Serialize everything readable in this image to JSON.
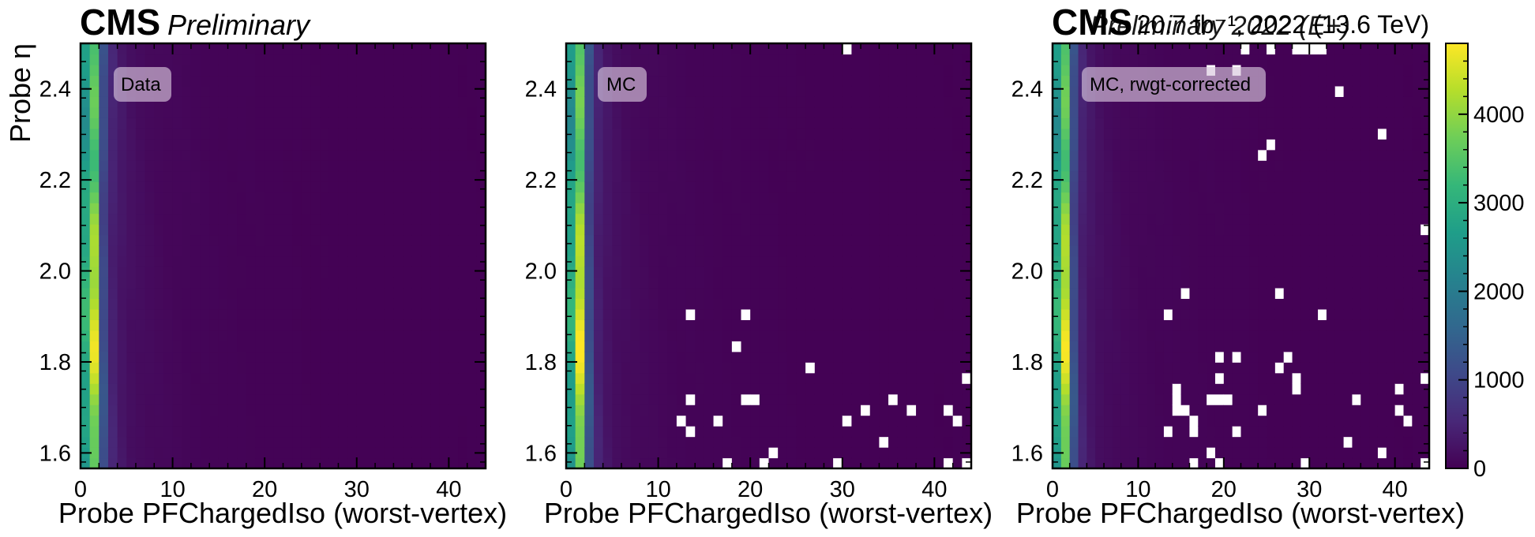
{
  "figure": {
    "experiment_label": "CMS",
    "status_label": "Preliminary",
    "lumi_label": "20.7 fb⁻¹, 2022 (13.6 TeV)",
    "era_label": "Preliminary 2022 (E+)"
  },
  "colormap": {
    "name": "viridis",
    "stops": [
      "#440154",
      "#482878",
      "#3e4989",
      "#31688e",
      "#26828e",
      "#1f9e89",
      "#35b779",
      "#6ece58",
      "#b5de2b",
      "#fde725"
    ],
    "empty_color": "#ffffff"
  },
  "chart_data": [
    {
      "type": "heatmap",
      "panel_label": "Data",
      "xlabel": "Probe PFChargedIso (worst-vertex)",
      "ylabel": "Probe η",
      "xlim": [
        0,
        44
      ],
      "ylim": [
        1.566,
        2.5
      ],
      "x_ticks": [
        0,
        10,
        20,
        30,
        40
      ],
      "x_tick_labels": [
        "0",
        "10",
        "20",
        "30",
        "40"
      ],
      "y_ticks": [
        1.6,
        1.8,
        2.0,
        2.2,
        2.4
      ],
      "y_tick_labels": [
        "1.6",
        "1.8",
        "2.0",
        "2.2",
        "2.4"
      ],
      "x_bins": {
        "start": 0,
        "stop": 44,
        "width": 1
      },
      "y_bins": {
        "start": 1.566,
        "stop": 2.5,
        "count": 40
      },
      "z_profile_by_x_bin": [
        2800,
        3500,
        1100,
        450,
        280,
        190,
        150,
        120,
        100,
        85,
        75,
        65,
        58,
        52,
        47,
        43,
        40,
        37,
        34,
        31,
        29,
        27,
        25,
        23,
        21,
        20,
        19,
        18,
        17,
        16,
        15,
        14,
        13,
        12,
        12,
        11,
        11,
        10,
        10,
        9,
        9,
        8,
        8,
        8
      ],
      "empty_bins_xy": []
    },
    {
      "type": "heatmap",
      "panel_label": "MC",
      "xlabel": "Probe PFChargedIso (worst-vertex)",
      "ylabel": "",
      "xlim": [
        0,
        44
      ],
      "ylim": [
        1.566,
        2.5
      ],
      "x_ticks": [
        0,
        10,
        20,
        30,
        40
      ],
      "x_tick_labels": [
        "0",
        "10",
        "20",
        "30",
        "40"
      ],
      "y_ticks": [
        1.6,
        1.8,
        2.0,
        2.2,
        2.4
      ],
      "y_tick_labels": [
        "1.6",
        "1.8",
        "2.0",
        "2.2",
        "2.4"
      ],
      "x_bins": {
        "start": 0,
        "stop": 44,
        "width": 1
      },
      "y_bins": {
        "start": 1.566,
        "stop": 2.5,
        "count": 40
      },
      "z_profile_by_x_bin": [
        2700,
        3600,
        1150,
        430,
        260,
        180,
        140,
        110,
        95,
        80,
        70,
        62,
        55,
        50,
        45,
        41,
        38,
        35,
        32,
        30,
        28,
        26,
        24,
        22,
        20,
        19,
        18,
        17,
        16,
        15,
        14,
        13,
        12,
        12,
        11,
        11,
        10,
        10,
        9,
        9,
        8,
        8,
        8,
        7
      ],
      "empty_bins_xy": [
        [
          30.5,
          2.485
        ],
        [
          13.5,
          1.905
        ],
        [
          19.5,
          1.905
        ],
        [
          18.5,
          1.835
        ],
        [
          26.5,
          1.788
        ],
        [
          43.5,
          1.765
        ],
        [
          13.5,
          1.718
        ],
        [
          19.5,
          1.718
        ],
        [
          20.5,
          1.718
        ],
        [
          32.5,
          1.695
        ],
        [
          35.5,
          1.718
        ],
        [
          37.5,
          1.695
        ],
        [
          41.5,
          1.695
        ],
        [
          12.5,
          1.672
        ],
        [
          16.5,
          1.672
        ],
        [
          30.5,
          1.672
        ],
        [
          42.5,
          1.672
        ],
        [
          13.5,
          1.648
        ],
        [
          34.5,
          1.625
        ],
        [
          22.5,
          1.602
        ],
        [
          17.5,
          1.578
        ],
        [
          21.5,
          1.578
        ],
        [
          29.5,
          1.578
        ],
        [
          41.5,
          1.578
        ],
        [
          43.5,
          1.578
        ]
      ]
    },
    {
      "type": "heatmap",
      "panel_label": "MC, rwgt-corrected",
      "xlabel": "Probe PFChargedIso (worst-vertex)",
      "ylabel": "",
      "xlim": [
        0,
        44
      ],
      "ylim": [
        1.566,
        2.5
      ],
      "x_ticks": [
        0,
        10,
        20,
        30,
        40
      ],
      "x_tick_labels": [
        "0",
        "10",
        "20",
        "30",
        "40"
      ],
      "y_ticks": [
        1.6,
        1.8,
        2.0,
        2.2,
        2.4
      ],
      "y_tick_labels": [
        "1.6",
        "1.8",
        "2.0",
        "2.2",
        "2.4"
      ],
      "x_bins": {
        "start": 0,
        "stop": 44,
        "width": 1
      },
      "y_bins": {
        "start": 1.566,
        "stop": 2.5,
        "count": 40
      },
      "z_profile_by_x_bin": [
        2750,
        3550,
        1120,
        440,
        270,
        185,
        145,
        115,
        97,
        82,
        72,
        63,
        56,
        51,
        46,
        42,
        39,
        36,
        33,
        30,
        28,
        26,
        24,
        22,
        20,
        19,
        18,
        17,
        16,
        15,
        14,
        13,
        12,
        12,
        11,
        11,
        10,
        10,
        9,
        9,
        8,
        8,
        8,
        7
      ],
      "colorbar": {
        "zlim": [
          0,
          4800
        ],
        "ticks": [
          0,
          1000,
          2000,
          3000,
          4000
        ],
        "tick_labels": [
          "0",
          "1000",
          "2000",
          "3000",
          "4000"
        ]
      },
      "empty_bins_xy": [
        [
          22.5,
          2.485
        ],
        [
          25.5,
          2.485
        ],
        [
          28.5,
          2.485
        ],
        [
          29.5,
          2.485
        ],
        [
          30.5,
          2.485
        ],
        [
          31.5,
          2.485
        ],
        [
          18.5,
          2.438
        ],
        [
          21.5,
          2.438
        ],
        [
          33.5,
          2.392
        ],
        [
          38.5,
          2.298
        ],
        [
          25.5,
          2.275
        ],
        [
          24.5,
          2.252
        ],
        [
          43.5,
          2.088
        ],
        [
          15.5,
          1.948
        ],
        [
          26.5,
          1.948
        ],
        [
          13.5,
          1.905
        ],
        [
          31.5,
          1.905
        ],
        [
          19.5,
          1.812
        ],
        [
          21.5,
          1.812
        ],
        [
          27.5,
          1.812
        ],
        [
          26.5,
          1.788
        ],
        [
          19.5,
          1.765
        ],
        [
          28.5,
          1.765
        ],
        [
          43.5,
          1.765
        ],
        [
          14.5,
          1.742
        ],
        [
          28.5,
          1.742
        ],
        [
          40.5,
          1.742
        ],
        [
          14.5,
          1.718
        ],
        [
          18.5,
          1.718
        ],
        [
          19.5,
          1.718
        ],
        [
          20.5,
          1.718
        ],
        [
          35.5,
          1.718
        ],
        [
          14.5,
          1.695
        ],
        [
          15.5,
          1.695
        ],
        [
          24.5,
          1.695
        ],
        [
          40.5,
          1.695
        ],
        [
          16.5,
          1.672
        ],
        [
          41.5,
          1.672
        ],
        [
          13.5,
          1.648
        ],
        [
          16.5,
          1.648
        ],
        [
          21.5,
          1.648
        ],
        [
          34.5,
          1.625
        ],
        [
          18.5,
          1.602
        ],
        [
          38.5,
          1.602
        ],
        [
          16.5,
          1.578
        ],
        [
          19.5,
          1.578
        ],
        [
          29.5,
          1.578
        ],
        [
          43.5,
          1.578
        ]
      ]
    }
  ]
}
